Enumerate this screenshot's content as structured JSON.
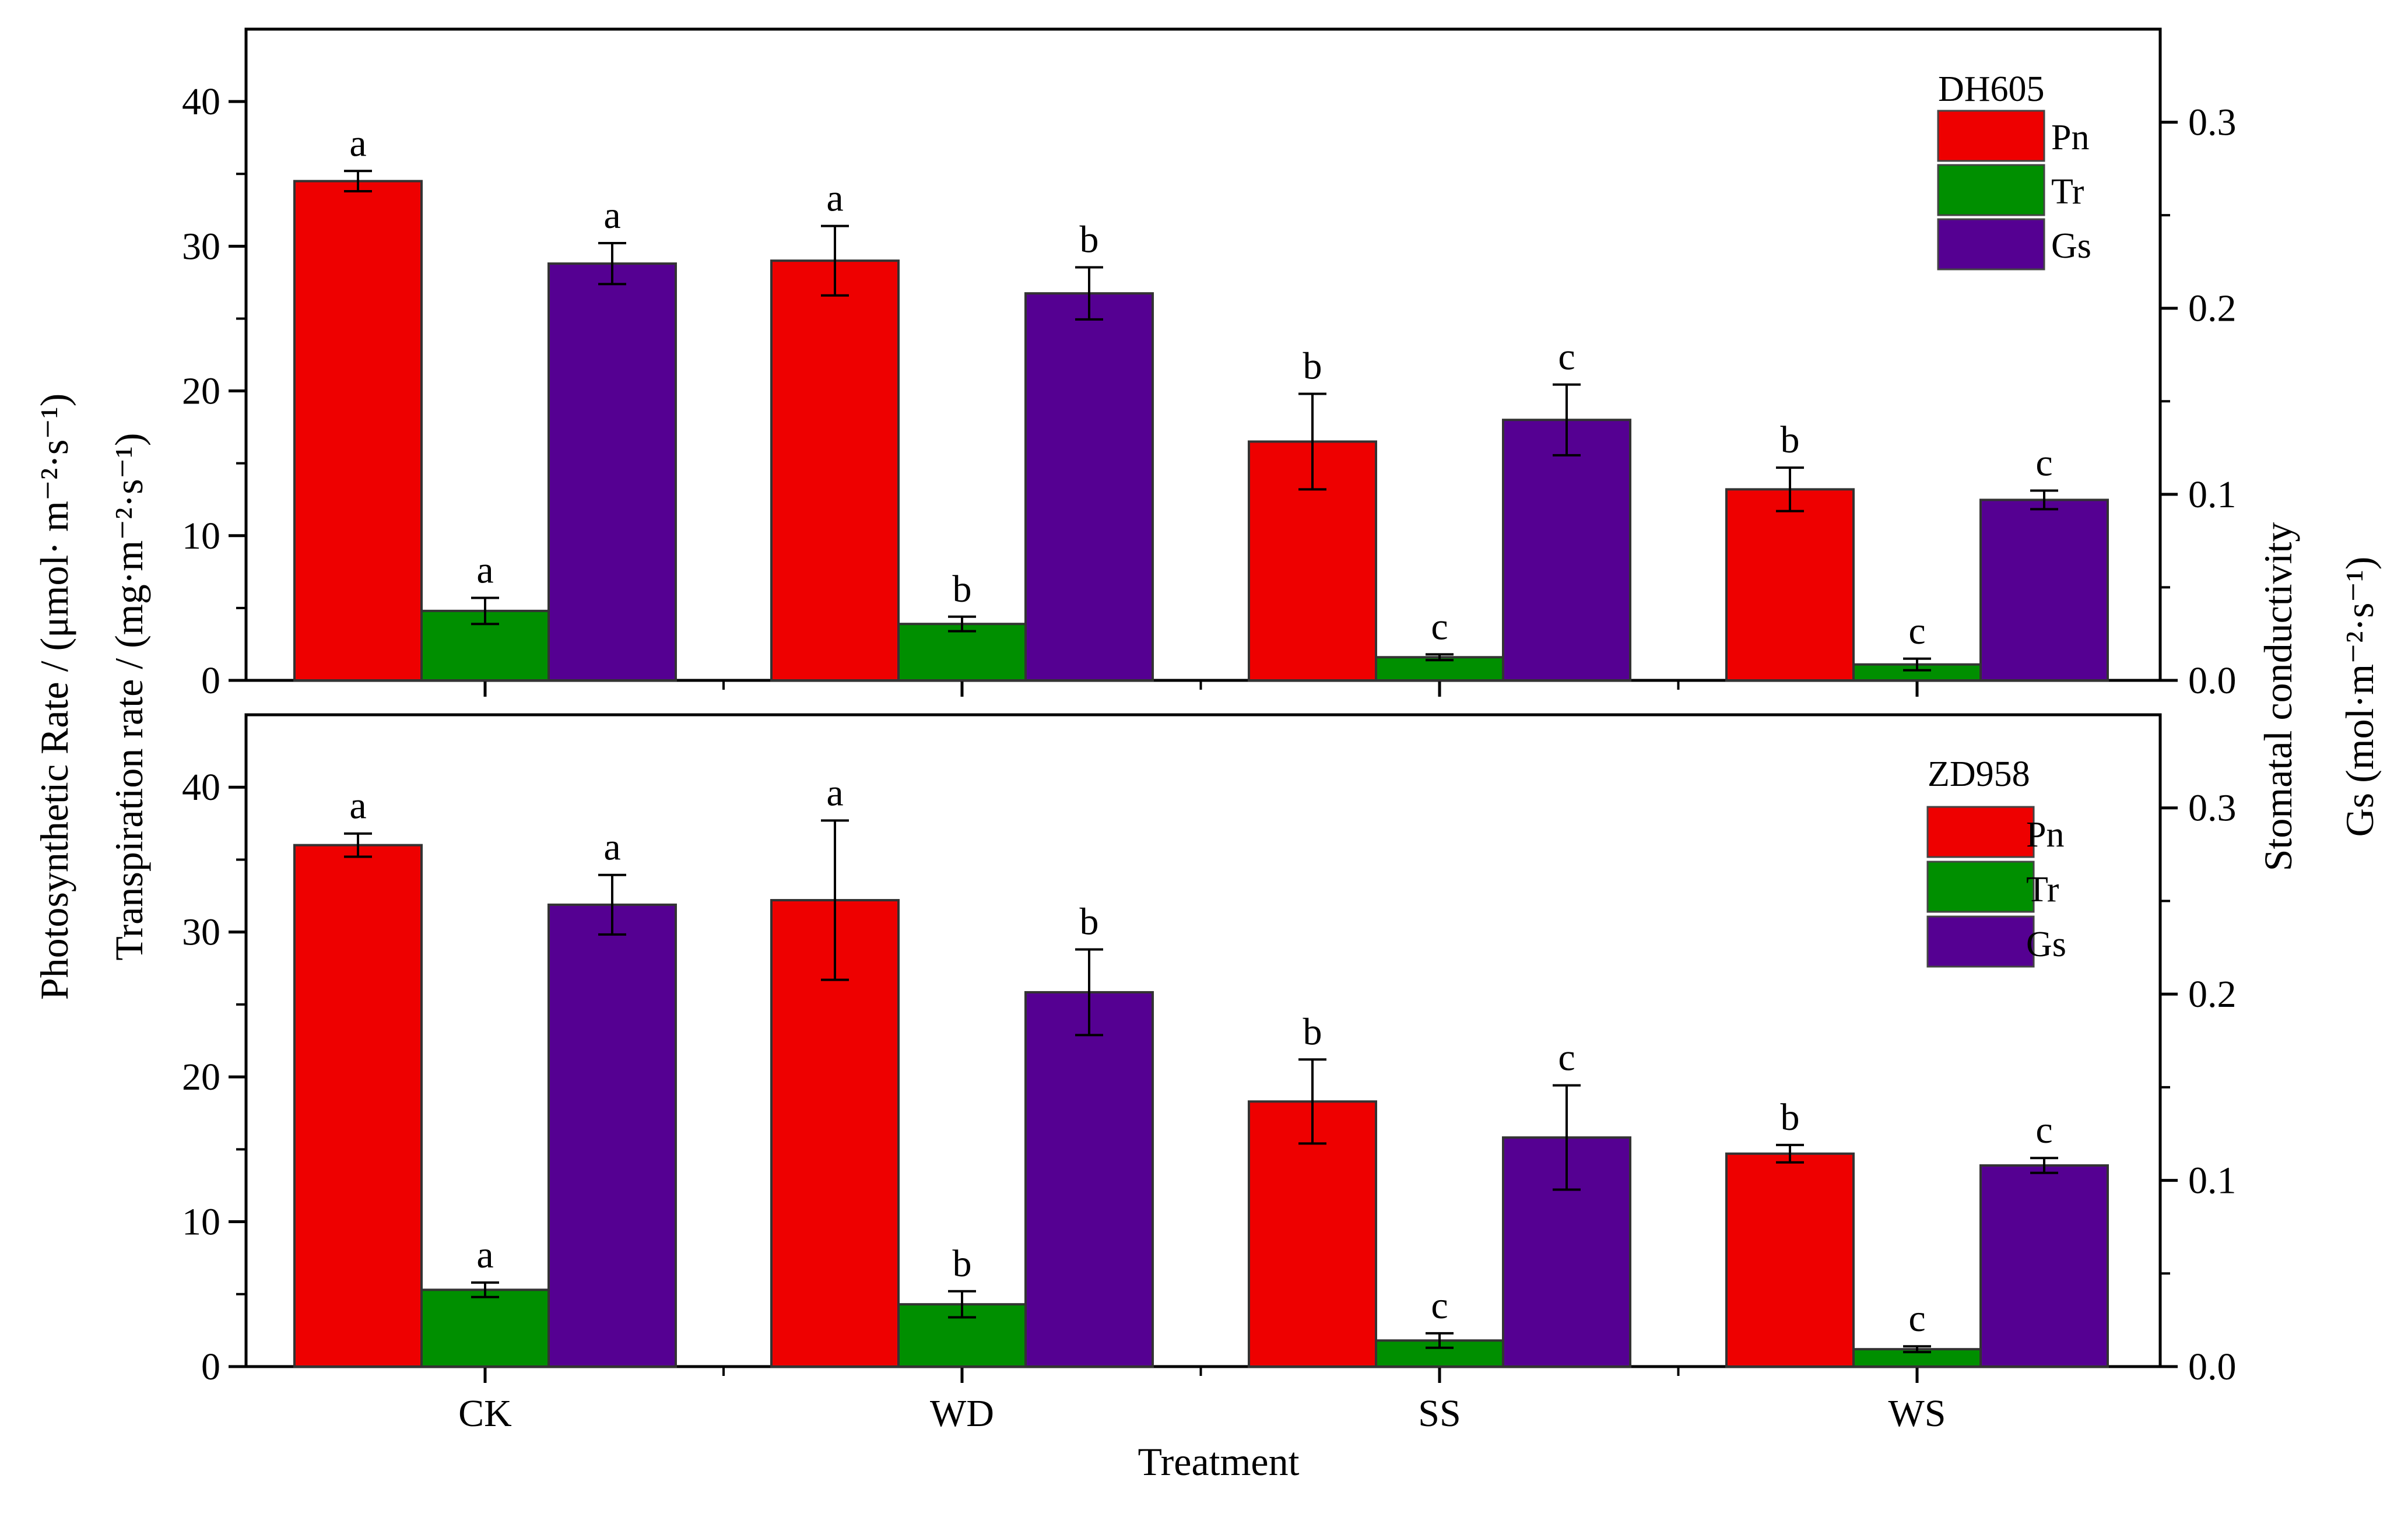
{
  "figure": {
    "left_axis_label_line1": "Photosynthetic Rate / (μmol· m⁻²·s⁻¹)",
    "left_axis_label_line2": "Transpiration rate / (mg·m⁻²·s⁻¹)",
    "right_axis_label_line1": "Stomatal conductivity",
    "right_axis_label_line2": "Gs (mol·m⁻²·s⁻¹)",
    "x_axis_label": "Treatment"
  },
  "chart_data": [
    {
      "type": "bar",
      "title": "DH605",
      "xlabel": "Treatment",
      "ylabel": "Photosynthetic Rate / (μmol· m⁻²·s⁻¹); Transpiration rate / (mg·m⁻²·s⁻¹)",
      "y2label": "Stomatal conductivity Gs (mol·m⁻²·s⁻¹)",
      "categories": [
        "CK",
        "WD",
        "SS",
        "WS"
      ],
      "ylim": [
        0,
        45
      ],
      "y2lim": [
        0,
        0.35
      ],
      "yticks": [
        0,
        10,
        20,
        30,
        40
      ],
      "y2ticks": [
        0.0,
        0.1,
        0.2,
        0.3
      ],
      "series": [
        {
          "name": "Pn",
          "color": "#ee0000",
          "axis": "left",
          "values": [
            34.5,
            29.0,
            16.5,
            13.2
          ],
          "errors": [
            0.7,
            2.4,
            3.3,
            1.5
          ],
          "letters": [
            "a",
            "a",
            "b",
            "b"
          ]
        },
        {
          "name": "Tr",
          "color": "#008f00",
          "axis": "left",
          "values": [
            4.8,
            3.9,
            1.6,
            1.1
          ],
          "errors": [
            0.9,
            0.5,
            0.2,
            0.4
          ],
          "letters": [
            "a",
            "b",
            "c",
            "c"
          ]
        },
        {
          "name": "Gs",
          "color": "#550092",
          "axis": "right",
          "values": [
            0.224,
            0.208,
            0.14,
            0.097
          ],
          "errors": [
            0.011,
            0.014,
            0.019,
            0.005
          ],
          "letters": [
            "a",
            "b",
            "c",
            "c"
          ]
        }
      ]
    },
    {
      "type": "bar",
      "title": "ZD958",
      "xlabel": "Treatment",
      "ylabel": "Photosynthetic Rate / (μmol· m⁻²·s⁻¹); Transpiration rate / (mg·m⁻²·s⁻¹)",
      "y2label": "Stomatal conductivity Gs (mol·m⁻²·s⁻¹)",
      "categories": [
        "CK",
        "WD",
        "SS",
        "WS"
      ],
      "ylim": [
        0,
        45
      ],
      "y2lim": [
        0,
        0.35
      ],
      "yticks": [
        0,
        10,
        20,
        30,
        40
      ],
      "y2ticks": [
        0.0,
        0.1,
        0.2,
        0.3
      ],
      "series": [
        {
          "name": "Pn",
          "color": "#ee0000",
          "axis": "left",
          "values": [
            36.0,
            32.2,
            18.3,
            14.7
          ],
          "errors": [
            0.8,
            5.5,
            2.9,
            0.6
          ],
          "letters": [
            "a",
            "a",
            "b",
            "b"
          ]
        },
        {
          "name": "Tr",
          "color": "#008f00",
          "axis": "left",
          "values": [
            5.3,
            4.3,
            1.8,
            1.2
          ],
          "errors": [
            0.5,
            0.9,
            0.5,
            0.2
          ],
          "letters": [
            "a",
            "b",
            "c",
            "c"
          ]
        },
        {
          "name": "Gs",
          "color": "#550092",
          "axis": "right",
          "values": [
            0.248,
            0.201,
            0.123,
            0.108
          ],
          "errors": [
            0.016,
            0.023,
            0.028,
            0.004
          ],
          "letters": [
            "a",
            "b",
            "c",
            "c"
          ]
        }
      ]
    }
  ]
}
